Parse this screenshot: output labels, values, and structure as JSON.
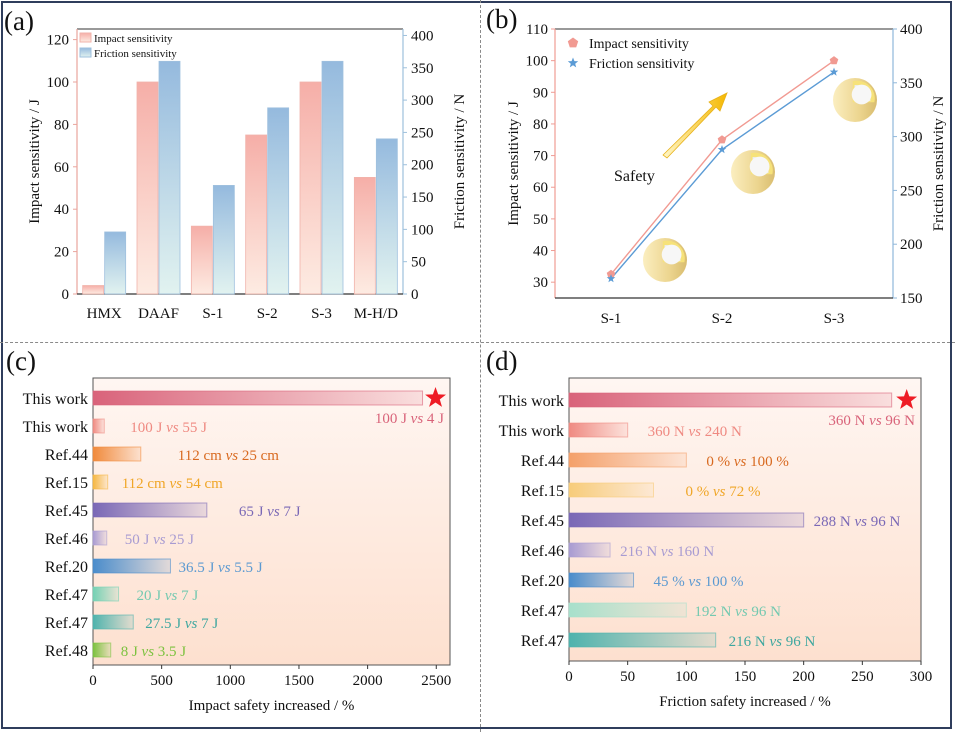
{
  "figure": {
    "panel_labels": [
      "(a)",
      "(b)",
      "(c)",
      "(d)"
    ]
  },
  "chart_data": [
    {
      "id": "a",
      "type": "bar",
      "title": "",
      "categories": [
        "HMX",
        "DAAF",
        "S-1",
        "S-2",
        "S-3",
        "M-H/D"
      ],
      "series": [
        {
          "name": "Impact sensitivity",
          "axis": "left",
          "values": [
            4,
            100,
            32,
            75,
            100,
            55
          ],
          "color": "#f4b6b0"
        },
        {
          "name": "Friction sensitivity",
          "axis": "right",
          "values": [
            96,
            360,
            168,
            288,
            360,
            240
          ],
          "color": "#8fb6dc"
        }
      ],
      "ylabel": "Impact sensitivity / J",
      "ylim": [
        0,
        125
      ],
      "yticks": [
        0,
        20,
        40,
        60,
        80,
        100,
        120
      ],
      "y2label": "Friction sensitivity / N",
      "y2lim": [
        0,
        410
      ],
      "y2ticks": [
        0,
        50,
        100,
        150,
        200,
        250,
        300,
        350,
        400
      ],
      "legend": "top-left"
    },
    {
      "id": "b",
      "type": "line",
      "categories": [
        "S-1",
        "S-2",
        "S-3"
      ],
      "series": [
        {
          "name": "Impact sensitivity",
          "axis": "left",
          "marker": "pentagon",
          "values": [
            32.5,
            75,
            100
          ],
          "color": "#f19a92"
        },
        {
          "name": "Friction sensitivity",
          "axis": "right",
          "marker": "star",
          "values": [
            168,
            288,
            360
          ],
          "color": "#5b9bd5"
        }
      ],
      "ylabel": "Impact sensitivity / J",
      "ylim": [
        25,
        110
      ],
      "yticks": [
        30,
        40,
        50,
        60,
        70,
        80,
        90,
        100,
        110
      ],
      "y2label": "Friction sensitivity / N",
      "y2lim": [
        150,
        400
      ],
      "y2ticks": [
        150,
        200,
        250,
        300,
        350,
        400
      ],
      "annotation": "Safety",
      "legend": "top-left"
    },
    {
      "id": "c",
      "type": "bar",
      "orientation": "horizontal",
      "categories": [
        "This work",
        "This work",
        "Ref.44",
        "Ref.15",
        "Ref.45",
        "Ref.46",
        "Ref.20",
        "Ref.47",
        "Ref.47",
        "Ref.48"
      ],
      "values": [
        2400,
        82,
        348,
        107,
        829,
        100,
        564,
        186,
        293,
        129
      ],
      "labels": [
        "100 J|vs|4 J",
        "100 J|vs|55 J",
        "112 cm|vs|25 cm",
        "112 cm|vs|54 cm",
        "65 J|vs|7 J",
        "50 J|vs|25 J",
        "36.5 J|vs|5.5 J",
        "20 J|vs|7 J",
        "27.5 J|vs|7 J",
        "8 J|vs|3.5 J"
      ],
      "colors": [
        "#d9637a",
        "#ef8a82",
        "#f08a3c",
        "#f5b742",
        "#7a68b6",
        "#a89bd2",
        "#4a8ccb",
        "#74d1b4",
        "#4fb3ad",
        "#7cc23f"
      ],
      "label_colors": [
        "#d9637a",
        "#ef8a82",
        "#d8691f",
        "#f0a627",
        "#7a68b6",
        "#a89bd2",
        "#5c9ad1",
        "#74c9b0",
        "#3ea79f",
        "#7cc23f"
      ],
      "highlight": "star",
      "xlabel": "Impact safety increased / %",
      "xlim": [
        0,
        2600
      ],
      "xticks": [
        0,
        500,
        1000,
        1500,
        2000,
        2500
      ]
    },
    {
      "id": "d",
      "type": "bar",
      "orientation": "horizontal",
      "categories": [
        "This work",
        "This work",
        "Ref.44",
        "Ref.15",
        "Ref.45",
        "Ref.46",
        "Ref.20",
        "Ref.47",
        "Ref.47"
      ],
      "values": [
        275,
        50,
        100,
        72,
        200,
        35,
        55,
        100,
        125
      ],
      "labels": [
        "360 N|vs|96 N",
        "360 N|vs|240 N",
        "0 %|vs|100 %",
        "0 %|vs|72 %",
        "288 N|vs|96 N",
        "216 N|vs|160 N",
        "45 %|vs|100 %",
        "192 N|vs|96 N",
        "216 N|vs|96 N"
      ],
      "colors": [
        "#d9637a",
        "#ef8a82",
        "#f4a06a",
        "#f7cc7a",
        "#7a68b6",
        "#a89bd2",
        "#4a8ccb",
        "#a7e0cb",
        "#4fb3ad"
      ],
      "label_colors": [
        "#d9637a",
        "#ef8a82",
        "#d8691f",
        "#f0a627",
        "#7a68b6",
        "#a89bd2",
        "#5c9ad1",
        "#74c9b0",
        "#3ea79f"
      ],
      "highlight": "star",
      "xlabel": "Friction safety increased / %",
      "xlim": [
        0,
        300
      ],
      "xticks": [
        0,
        50,
        100,
        150,
        200,
        250,
        300
      ]
    }
  ]
}
